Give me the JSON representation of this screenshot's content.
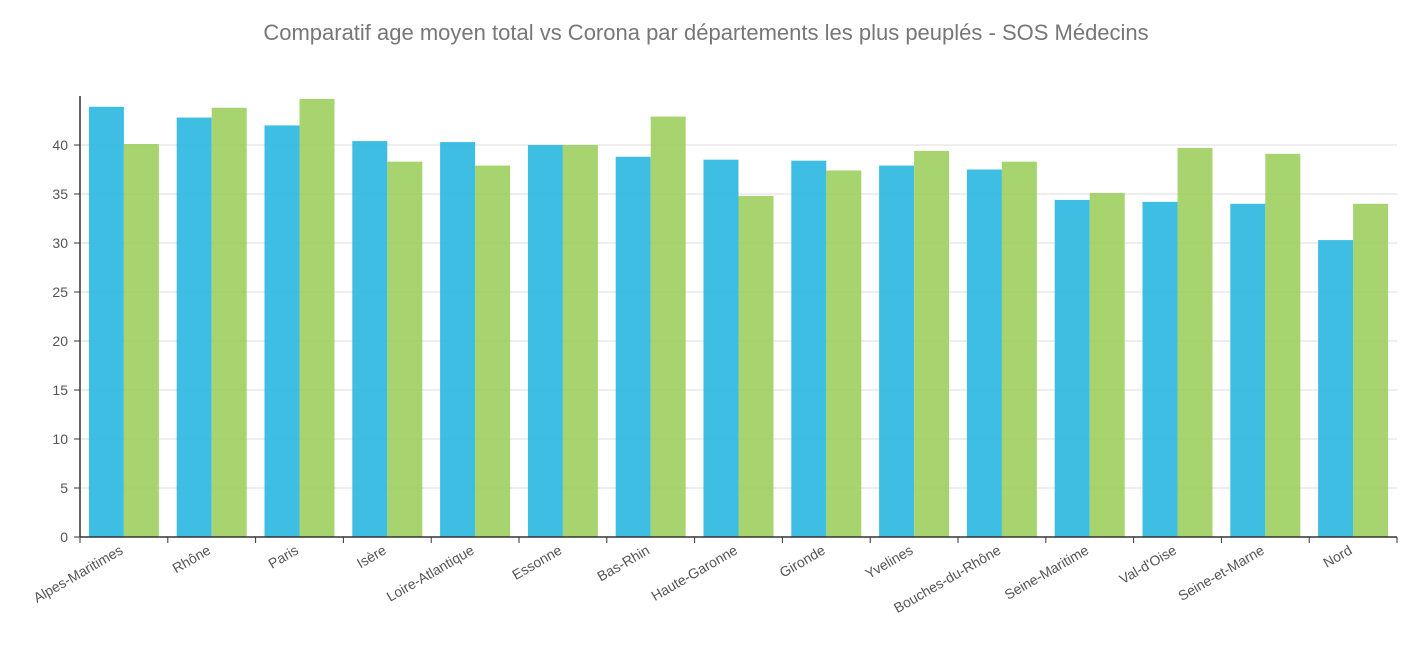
{
  "chart_data": {
    "type": "bar",
    "title": "Comparatif age moyen  total vs Corona  par départements les plus peuplés - SOS Médecins",
    "xlabel": "",
    "ylabel": "",
    "ylim": [
      0,
      45
    ],
    "yticks": [
      0,
      5,
      10,
      15,
      20,
      25,
      30,
      35,
      40
    ],
    "grid": true,
    "legend": "none",
    "categories": [
      "Alpes-Maritimes",
      "Rhône",
      "Paris",
      "Isère",
      "Loire-Atlantique",
      "Essonne",
      "Bas-Rhin",
      "Haute-Garonne",
      "Gironde",
      "Yvelines",
      "Bouches-du-Rhône",
      "Seine-Maritime",
      "Val-d'Oise",
      "Seine-et-Marne",
      "Nord"
    ],
    "series": [
      {
        "color": "#2ab7e0",
        "values": [
          43.9,
          42.8,
          42.0,
          40.4,
          40.3,
          40.0,
          38.8,
          38.5,
          38.4,
          37.9,
          37.5,
          34.4,
          34.2,
          34.0,
          30.3
        ]
      },
      {
        "color": "#9fcf5f",
        "values": [
          40.1,
          43.8,
          44.7,
          38.3,
          37.9,
          40.0,
          42.9,
          34.8,
          37.4,
          39.4,
          38.3,
          35.1,
          39.7,
          39.1,
          34.0
        ]
      }
    ]
  }
}
